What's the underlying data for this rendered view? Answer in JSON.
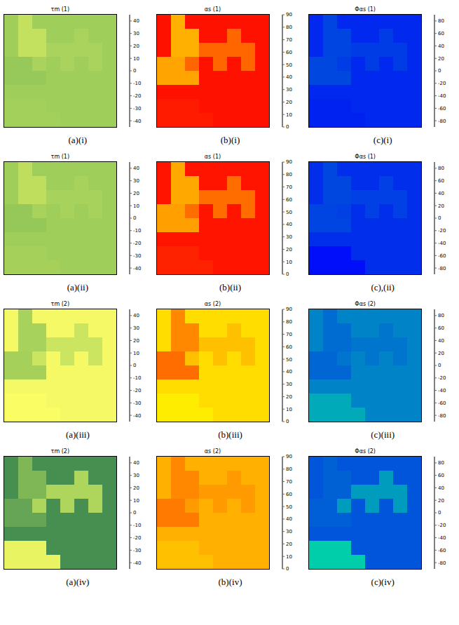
{
  "chart_data": [
    {
      "type": "heatmap",
      "title": "τm (1)",
      "caption": "(a)(i)",
      "tick_labels": false,
      "colors": [
        "#2e7d4f",
        "#9ccc5a",
        "#ffff66"
      ],
      "colorbar": {
        "range": [
          -45,
          45
        ],
        "ticks": [
          -40,
          -30,
          -20,
          -10,
          0,
          10,
          20,
          30,
          40
        ]
      },
      "cells": [
        [
          2,
          18,
          2,
          2,
          2,
          2,
          2,
          2
        ],
        [
          2,
          18,
          18,
          2,
          2,
          6,
          2,
          2
        ],
        [
          2,
          18,
          18,
          6,
          6,
          6,
          6,
          2
        ],
        [
          -2,
          -2,
          6,
          2,
          6,
          2,
          6,
          2
        ],
        [
          -2,
          -2,
          -2,
          2,
          2,
          2,
          2,
          2
        ],
        [
          2,
          2,
          2,
          2,
          2,
          2,
          2,
          2
        ],
        [
          3,
          3,
          3,
          2,
          2,
          2,
          2,
          2
        ],
        [
          3,
          3,
          3,
          3,
          2,
          2,
          2,
          2
        ]
      ]
    },
    {
      "type": "heatmap",
      "title": "αs (1)",
      "caption": "(b)(i)",
      "tick_labels": false,
      "colors": [
        "#ff0000",
        "#ff9900",
        "#ffff00"
      ],
      "colorbar": {
        "range": [
          0,
          90
        ],
        "ticks": [
          0,
          10,
          20,
          30,
          40,
          50,
          60,
          70,
          80,
          90
        ]
      },
      "cells": [
        [
          5,
          55,
          5,
          5,
          5,
          5,
          5,
          5
        ],
        [
          5,
          55,
          55,
          5,
          5,
          30,
          5,
          5
        ],
        [
          5,
          55,
          55,
          30,
          30,
          30,
          30,
          5
        ],
        [
          50,
          50,
          30,
          5,
          30,
          5,
          30,
          5
        ],
        [
          50,
          50,
          50,
          5,
          5,
          5,
          5,
          5
        ],
        [
          5,
          5,
          5,
          5,
          5,
          5,
          5,
          5
        ],
        [
          8,
          8,
          8,
          5,
          5,
          5,
          5,
          5
        ],
        [
          8,
          8,
          8,
          8,
          5,
          5,
          5,
          5
        ]
      ]
    },
    {
      "type": "heatmap",
      "title": "Φαs (1)",
      "caption": "(c)(i)",
      "tick_labels": false,
      "colors": [
        "#0000ff",
        "#0080c8",
        "#00ff99"
      ],
      "colorbar": {
        "range": [
          -90,
          90
        ],
        "ticks": [
          -80,
          -60,
          -40,
          -20,
          0,
          20,
          40,
          60,
          80
        ]
      },
      "cells": [
        [
          -62,
          -42,
          -62,
          -62,
          -62,
          -62,
          -62,
          -62
        ],
        [
          -62,
          -42,
          -42,
          -62,
          -62,
          -48,
          -62,
          -62
        ],
        [
          -62,
          -42,
          -42,
          -48,
          -48,
          -48,
          -48,
          -62
        ],
        [
          -40,
          -40,
          -48,
          -62,
          -48,
          -62,
          -48,
          -62
        ],
        [
          -40,
          -40,
          -40,
          -62,
          -62,
          -62,
          -62,
          -62
        ],
        [
          -62,
          -62,
          -62,
          -62,
          -62,
          -62,
          -62,
          -62
        ],
        [
          -66,
          -66,
          -66,
          -62,
          -62,
          -62,
          -62,
          -62
        ],
        [
          -66,
          -66,
          -66,
          -66,
          -62,
          -62,
          -62,
          -62
        ]
      ]
    },
    {
      "type": "heatmap",
      "title": "τm (1)",
      "caption": "(a)(ii)",
      "tick_labels": false,
      "colors": [
        "#2e7d4f",
        "#9ccc5a",
        "#ffff66"
      ],
      "colorbar": {
        "range": [
          -45,
          45
        ],
        "ticks": [
          -40,
          -30,
          -20,
          -10,
          0,
          10,
          20,
          30,
          40
        ]
      },
      "cells": [
        [
          2,
          16,
          2,
          2,
          2,
          2,
          2,
          2
        ],
        [
          2,
          16,
          16,
          2,
          2,
          5,
          2,
          2
        ],
        [
          2,
          16,
          16,
          5,
          5,
          5,
          5,
          2
        ],
        [
          -3,
          -3,
          5,
          2,
          5,
          2,
          5,
          2
        ],
        [
          -3,
          -3,
          -3,
          2,
          2,
          2,
          2,
          2
        ],
        [
          2,
          2,
          2,
          2,
          2,
          2,
          2,
          2
        ],
        [
          4,
          4,
          4,
          2,
          2,
          2,
          2,
          2
        ],
        [
          4,
          4,
          4,
          4,
          2,
          2,
          2,
          2
        ]
      ]
    },
    {
      "type": "heatmap",
      "title": "αs (1)",
      "caption": "(b)(ii)",
      "tick_labels": false,
      "colors": [
        "#ff0000",
        "#ff9900",
        "#ffff00"
      ],
      "colorbar": {
        "range": [
          0,
          90
        ],
        "ticks": [
          0,
          10,
          20,
          30,
          40,
          50,
          60,
          70,
          80,
          90
        ]
      },
      "cells": [
        [
          6,
          52,
          6,
          6,
          6,
          6,
          6,
          6
        ],
        [
          6,
          52,
          52,
          6,
          6,
          32,
          6,
          6
        ],
        [
          6,
          52,
          52,
          32,
          32,
          32,
          32,
          6
        ],
        [
          48,
          48,
          32,
          6,
          32,
          6,
          32,
          6
        ],
        [
          48,
          48,
          48,
          6,
          6,
          6,
          6,
          6
        ],
        [
          6,
          6,
          6,
          6,
          6,
          6,
          6,
          6
        ],
        [
          10,
          10,
          10,
          6,
          6,
          6,
          6,
          6
        ],
        [
          10,
          10,
          10,
          10,
          6,
          6,
          6,
          6
        ]
      ]
    },
    {
      "type": "heatmap",
      "title": "Φαs (1)",
      "caption": "(c),(ii)",
      "tick_labels": false,
      "colors": [
        "#0000ff",
        "#0080c8",
        "#00ff99"
      ],
      "colorbar": {
        "range": [
          -90,
          90
        ],
        "ticks": [
          -80,
          -60,
          -40,
          -20,
          0,
          20,
          40,
          60,
          80
        ]
      },
      "cells": [
        [
          -58,
          -40,
          -58,
          -58,
          -58,
          -58,
          -58,
          -58
        ],
        [
          -58,
          -40,
          -40,
          -58,
          -58,
          -45,
          -58,
          -58
        ],
        [
          -58,
          -40,
          -40,
          -45,
          -45,
          -45,
          -45,
          -58
        ],
        [
          -42,
          -42,
          -45,
          -58,
          -45,
          -58,
          -45,
          -58
        ],
        [
          -42,
          -42,
          -42,
          -58,
          -58,
          -58,
          -58,
          -58
        ],
        [
          -58,
          -58,
          -58,
          -58,
          -58,
          -58,
          -58,
          -58
        ],
        [
          -80,
          -80,
          -80,
          -58,
          -58,
          -58,
          -58,
          -58
        ],
        [
          -80,
          -80,
          -80,
          -80,
          -58,
          -58,
          -58,
          -58
        ]
      ]
    },
    {
      "type": "heatmap",
      "title": "τm (2)",
      "caption": "(a)(iii)",
      "tick_labels": false,
      "colors": [
        "#2e7d4f",
        "#9ccc5a",
        "#ffff66"
      ],
      "colorbar": {
        "range": [
          -45,
          45
        ],
        "ticks": [
          -40,
          -30,
          -20,
          -10,
          0,
          10,
          20,
          30,
          40
        ]
      },
      "cells": [
        [
          40,
          5,
          40,
          40,
          40,
          40,
          40,
          40
        ],
        [
          40,
          5,
          5,
          40,
          40,
          22,
          40,
          40
        ],
        [
          40,
          5,
          5,
          22,
          22,
          22,
          22,
          40
        ],
        [
          4,
          4,
          22,
          40,
          22,
          40,
          22,
          40
        ],
        [
          4,
          4,
          4,
          40,
          40,
          40,
          40,
          40
        ],
        [
          40,
          40,
          40,
          40,
          40,
          40,
          40,
          40
        ],
        [
          43,
          43,
          43,
          40,
          40,
          40,
          40,
          40
        ],
        [
          43,
          43,
          43,
          43,
          40,
          40,
          40,
          40
        ]
      ]
    },
    {
      "type": "heatmap",
      "title": "αs (2)",
      "caption": "(b)(iii)",
      "tick_labels": false,
      "colors": [
        "#ff0000",
        "#ff9900",
        "#ffff00"
      ],
      "colorbar": {
        "range": [
          0,
          90
        ],
        "ticks": [
          0,
          10,
          20,
          30,
          40,
          50,
          60,
          70,
          80,
          90
        ]
      },
      "cells": [
        [
          75,
          40,
          75,
          75,
          75,
          75,
          75,
          75
        ],
        [
          75,
          40,
          40,
          75,
          75,
          62,
          75,
          75
        ],
        [
          75,
          40,
          40,
          62,
          62,
          62,
          62,
          75
        ],
        [
          32,
          32,
          62,
          75,
          62,
          75,
          62,
          75
        ],
        [
          32,
          32,
          32,
          75,
          75,
          75,
          75,
          75
        ],
        [
          75,
          75,
          75,
          75,
          75,
          75,
          75,
          75
        ],
        [
          82,
          82,
          82,
          75,
          75,
          75,
          75,
          75
        ],
        [
          82,
          82,
          82,
          82,
          75,
          75,
          75,
          75
        ]
      ]
    },
    {
      "type": "heatmap",
      "title": "Φαs (2)",
      "caption": "(c)(iii)",
      "tick_labels": false,
      "colors": [
        "#0000ff",
        "#0080c8",
        "#00ff99"
      ],
      "colorbar": {
        "range": [
          -90,
          90
        ],
        "ticks": [
          -80,
          -60,
          -40,
          -20,
          0,
          20,
          40,
          60,
          80
        ]
      },
      "cells": [
        [
          2,
          -15,
          2,
          2,
          2,
          2,
          2,
          2
        ],
        [
          2,
          -15,
          -15,
          2,
          2,
          -8,
          2,
          2
        ],
        [
          2,
          -15,
          -15,
          -8,
          -8,
          -8,
          -8,
          2
        ],
        [
          -18,
          -18,
          -8,
          2,
          -8,
          2,
          -8,
          2
        ],
        [
          -18,
          -18,
          -18,
          2,
          2,
          2,
          2,
          2
        ],
        [
          2,
          2,
          2,
          2,
          2,
          2,
          2,
          2
        ],
        [
          30,
          30,
          30,
          2,
          2,
          2,
          2,
          2
        ],
        [
          30,
          30,
          30,
          30,
          2,
          2,
          2,
          2
        ]
      ]
    },
    {
      "type": "heatmap",
      "title": "τm (2)",
      "caption": "(a)(iv)",
      "tick_labels": false,
      "colors": [
        "#2e7d4f",
        "#9ccc5a",
        "#ffff66"
      ],
      "colorbar": {
        "range": [
          -45,
          45
        ],
        "ticks": [
          -40,
          -30,
          -20,
          -10,
          0,
          10,
          20,
          30,
          40
        ]
      },
      "cells": [
        [
          -35,
          -12,
          -35,
          -35,
          -35,
          -35,
          -35,
          -35
        ],
        [
          -35,
          -12,
          -12,
          -35,
          -35,
          8,
          -35,
          -35
        ],
        [
          -35,
          -12,
          -12,
          8,
          8,
          8,
          8,
          -35
        ],
        [
          -22,
          -22,
          8,
          -35,
          8,
          -35,
          8,
          -35
        ],
        [
          -22,
          -22,
          -22,
          -35,
          -35,
          -35,
          -35,
          -35
        ],
        [
          -35,
          -35,
          -35,
          -35,
          -35,
          -35,
          -35,
          -35
        ],
        [
          35,
          35,
          35,
          -35,
          -35,
          -35,
          -35,
          -35
        ],
        [
          35,
          35,
          35,
          35,
          -35,
          -35,
          -35,
          -35
        ]
      ]
    },
    {
      "type": "heatmap",
      "title": "αs (2)",
      "caption": "(b)(iv)",
      "tick_labels": false,
      "colors": [
        "#ff0000",
        "#ff9900",
        "#ffff00"
      ],
      "colorbar": {
        "range": [
          0,
          90
        ],
        "ticks": [
          0,
          10,
          20,
          30,
          40,
          50,
          60,
          70,
          80,
          90
        ]
      },
      "cells": [
        [
          55,
          40,
          55,
          55,
          55,
          55,
          55,
          55
        ],
        [
          55,
          40,
          40,
          55,
          55,
          46,
          55,
          55
        ],
        [
          55,
          40,
          40,
          46,
          46,
          46,
          46,
          55
        ],
        [
          36,
          36,
          46,
          55,
          46,
          55,
          46,
          55
        ],
        [
          36,
          36,
          36,
          55,
          55,
          55,
          55,
          55
        ],
        [
          55,
          55,
          55,
          55,
          55,
          55,
          55,
          55
        ],
        [
          62,
          62,
          62,
          55,
          55,
          55,
          55,
          55
        ],
        [
          62,
          62,
          62,
          62,
          55,
          55,
          55,
          55
        ]
      ]
    },
    {
      "type": "heatmap",
      "title": "Φαs (2)",
      "caption": "(c)(iv)",
      "tick_labels": false,
      "colors": [
        "#0000ff",
        "#0080c8",
        "#00ff99"
      ],
      "colorbar": {
        "range": [
          -90,
          90
        ],
        "ticks": [
          -80,
          -60,
          -40,
          -20,
          0,
          20,
          40,
          60,
          80
        ]
      },
      "cells": [
        [
          -30,
          -22,
          -30,
          -30,
          -30,
          -30,
          -30,
          -30
        ],
        [
          -30,
          -22,
          -22,
          -30,
          -30,
          20,
          -30,
          -30
        ],
        [
          -30,
          -22,
          -22,
          20,
          20,
          20,
          20,
          -30
        ],
        [
          -24,
          -24,
          20,
          -30,
          20,
          -30,
          20,
          -30
        ],
        [
          -24,
          -24,
          -24,
          -30,
          -30,
          -30,
          -30,
          -30
        ],
        [
          -30,
          -30,
          -30,
          -30,
          -30,
          -30,
          -30,
          -30
        ],
        [
          55,
          55,
          55,
          -30,
          -30,
          -30,
          -30,
          -30
        ],
        [
          55,
          55,
          55,
          55,
          -30,
          -30,
          -30,
          -30
        ]
      ]
    }
  ]
}
